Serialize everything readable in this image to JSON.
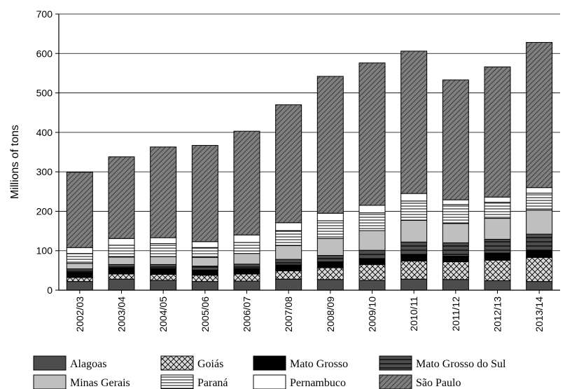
{
  "chart_data": {
    "type": "bar",
    "stacked": true,
    "title": "",
    "xlabel": "",
    "ylabel": "Millions of tons",
    "ylim": [
      0,
      700
    ],
    "yticks": [
      0,
      100,
      200,
      300,
      400,
      500,
      600,
      700
    ],
    "grid": "horizontal",
    "legend_position": "bottom",
    "categories": [
      "2002/03",
      "2003/04",
      "2004/05",
      "2005/06",
      "2006/07",
      "2007/08",
      "2008/09",
      "2009/10",
      "2010/11",
      "2011/12",
      "2012/13",
      "2013/14"
    ],
    "series": [
      {
        "name": "Alagoas",
        "pattern": "solid-dark",
        "values": [
          22,
          28,
          25,
          22,
          23,
          28,
          27,
          25,
          28,
          27,
          24,
          22
        ]
      },
      {
        "name": "Goiás",
        "pattern": "crosshatch",
        "values": [
          10,
          13,
          15,
          16,
          18,
          21,
          30,
          40,
          46,
          45,
          52,
          61
        ]
      },
      {
        "name": "Mato Grosso",
        "pattern": "solid-black",
        "values": [
          13,
          15,
          15,
          13,
          14,
          15,
          15,
          14,
          16,
          14,
          18,
          17
        ]
      },
      {
        "name": "Mato Grosso do Sul",
        "pattern": "dark-horizontal-lines",
        "values": [
          9,
          9,
          10,
          10,
          11,
          14,
          16,
          22,
          32,
          34,
          35,
          42
        ]
      },
      {
        "name": "Minas Gerais",
        "pattern": "light-gray",
        "values": [
          14,
          19,
          20,
          22,
          27,
          35,
          43,
          50,
          55,
          49,
          53,
          61
        ]
      },
      {
        "name": "Paraná",
        "pattern": "horizontal-lines",
        "values": [
          25,
          30,
          33,
          25,
          28,
          38,
          45,
          45,
          49,
          48,
          41,
          43
        ]
      },
      {
        "name": "Pernambuco",
        "pattern": "white",
        "values": [
          15,
          17,
          15,
          15,
          19,
          20,
          19,
          19,
          19,
          12,
          13,
          14
        ]
      },
      {
        "name": "São Paulo",
        "pattern": "diagonal-dark",
        "values": [
          191,
          207,
          230,
          244,
          263,
          299,
          347,
          361,
          361,
          304,
          330,
          368
        ]
      }
    ],
    "colors": {
      "solid-dark": "#4d4d4d",
      "solid-black": "#000000",
      "light-gray": "#bfbfbf",
      "white": "#ffffff",
      "crosshatch-fill": "#d9d9d9",
      "diagonal-fill": "#7f7f7f"
    }
  }
}
